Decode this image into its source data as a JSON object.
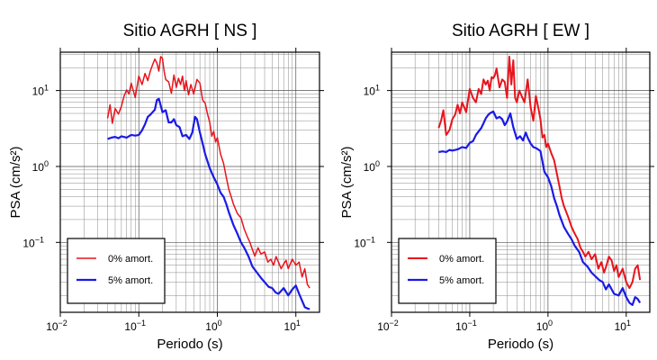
{
  "chart_data": [
    {
      "type": "line",
      "title": "Sitio AGRH [ NS ]",
      "xlabel": "Periodo (s)",
      "ylabel": "PSA (cm/s²)",
      "xscale": "log",
      "yscale": "log",
      "xlim": [
        0.01,
        20
      ],
      "ylim": [
        0.012,
        32
      ],
      "grid": true,
      "legend_position": "lower-left",
      "xticks": [
        {
          "label_base": "10",
          "label_exp": "−2"
        },
        {
          "label_base": "10",
          "label_exp": "−1"
        },
        {
          "label_base": "10",
          "label_exp": "0"
        },
        {
          "label_base": "10",
          "label_exp": "1"
        }
      ],
      "yticks": [
        {
          "label_base": "10",
          "label_exp": "−1"
        },
        {
          "label_base": "10",
          "label_exp": "0"
        },
        {
          "label_base": "10",
          "label_exp": "1"
        }
      ],
      "series": [
        {
          "name": "0% amort.",
          "color": "#e8141c",
          "line_width": 1.5,
          "x": [
            0.04,
            0.043,
            0.046,
            0.05,
            0.055,
            0.06,
            0.065,
            0.07,
            0.075,
            0.08,
            0.09,
            0.1,
            0.11,
            0.12,
            0.13,
            0.14,
            0.15,
            0.16,
            0.17,
            0.18,
            0.19,
            0.2,
            0.21,
            0.22,
            0.24,
            0.26,
            0.28,
            0.3,
            0.32,
            0.34,
            0.36,
            0.38,
            0.4,
            0.43,
            0.46,
            0.5,
            0.55,
            0.6,
            0.65,
            0.7,
            0.75,
            0.8,
            0.85,
            0.9,
            0.95,
            1.0,
            1.1,
            1.2,
            1.3,
            1.4,
            1.5,
            1.6,
            1.8,
            2.0,
            2.2,
            2.4,
            2.6,
            2.8,
            3.0,
            3.3,
            3.6,
            4.0,
            4.4,
            4.8,
            5.2,
            5.6,
            6.0,
            6.5,
            7.0,
            7.5,
            8.0,
            9.0,
            10,
            11,
            12,
            13,
            14,
            15
          ],
          "y": [
            4.3,
            6.5,
            3.7,
            5.8,
            4.9,
            6.2,
            8.5,
            10.2,
            9.0,
            12.5,
            8.1,
            15.5,
            12.0,
            16.8,
            13.5,
            18.0,
            22.0,
            26.0,
            23.0,
            18.0,
            28.0,
            26.5,
            18.0,
            14.0,
            13.0,
            9.2,
            16.0,
            11.0,
            14.5,
            12.0,
            15.5,
            10.0,
            13.5,
            8.8,
            12.0,
            9.0,
            14.0,
            12.5,
            7.5,
            6.8,
            4.9,
            3.8,
            2.5,
            2.9,
            2.1,
            2.4,
            1.45,
            1.1,
            0.72,
            0.5,
            0.4,
            0.32,
            0.24,
            0.21,
            0.15,
            0.12,
            0.1,
            0.08,
            0.066,
            0.085,
            0.07,
            0.075,
            0.055,
            0.06,
            0.05,
            0.065,
            0.055,
            0.045,
            0.052,
            0.058,
            0.045,
            0.06,
            0.05,
            0.055,
            0.035,
            0.045,
            0.028,
            0.025
          ]
        },
        {
          "name": "5% amort.",
          "color": "#1a1ae6",
          "line_width": 2.2,
          "x": [
            0.04,
            0.045,
            0.05,
            0.055,
            0.06,
            0.07,
            0.08,
            0.09,
            0.1,
            0.11,
            0.12,
            0.13,
            0.14,
            0.15,
            0.16,
            0.17,
            0.18,
            0.2,
            0.22,
            0.24,
            0.26,
            0.28,
            0.3,
            0.33,
            0.36,
            0.4,
            0.44,
            0.48,
            0.52,
            0.55,
            0.6,
            0.65,
            0.7,
            0.8,
            0.9,
            1.0,
            1.1,
            1.2,
            1.3,
            1.4,
            1.6,
            1.8,
            2.0,
            2.2,
            2.5,
            2.8,
            3.2,
            3.6,
            4.0,
            4.5,
            5.0,
            5.5,
            6.0,
            7.0,
            8.0,
            9.0,
            10,
            11,
            12,
            13,
            14,
            15
          ],
          "y": [
            2.3,
            2.4,
            2.45,
            2.35,
            2.5,
            2.4,
            2.6,
            2.55,
            2.6,
            3.0,
            3.6,
            4.5,
            4.8,
            5.2,
            5.6,
            7.5,
            7.8,
            5.2,
            5.5,
            3.8,
            3.8,
            4.2,
            3.5,
            3.3,
            2.5,
            2.6,
            2.3,
            2.8,
            4.5,
            4.2,
            2.8,
            2.0,
            1.45,
            0.95,
            0.72,
            0.58,
            0.45,
            0.4,
            0.32,
            0.25,
            0.17,
            0.13,
            0.1,
            0.085,
            0.065,
            0.048,
            0.04,
            0.034,
            0.03,
            0.026,
            0.025,
            0.022,
            0.021,
            0.025,
            0.02,
            0.024,
            0.027,
            0.021,
            0.017,
            0.014,
            0.0135,
            0.0132
          ]
        }
      ]
    },
    {
      "type": "line",
      "title": "Sitio AGRH [ EW ]",
      "xlabel": "Periodo (s)",
      "ylabel": "PSA (cm/s²)",
      "xscale": "log",
      "yscale": "log",
      "xlim": [
        0.01,
        20
      ],
      "ylim": [
        0.012,
        32
      ],
      "grid": true,
      "legend_position": "lower-left",
      "xticks": [
        {
          "label_base": "10",
          "label_exp": "−2"
        },
        {
          "label_base": "10",
          "label_exp": "−1"
        },
        {
          "label_base": "10",
          "label_exp": "0"
        },
        {
          "label_base": "10",
          "label_exp": "1"
        }
      ],
      "yticks": [
        {
          "label_base": "10",
          "label_exp": "−1"
        },
        {
          "label_base": "10",
          "label_exp": "0"
        },
        {
          "label_base": "10",
          "label_exp": "1"
        }
      ],
      "series": [
        {
          "name": "0% amort.",
          "color": "#e8141c",
          "line_width": 2.0,
          "x": [
            0.04,
            0.043,
            0.046,
            0.05,
            0.055,
            0.06,
            0.065,
            0.07,
            0.075,
            0.08,
            0.09,
            0.1,
            0.11,
            0.12,
            0.13,
            0.14,
            0.15,
            0.16,
            0.17,
            0.18,
            0.19,
            0.2,
            0.21,
            0.22,
            0.24,
            0.26,
            0.28,
            0.3,
            0.32,
            0.34,
            0.36,
            0.38,
            0.4,
            0.43,
            0.46,
            0.5,
            0.55,
            0.6,
            0.65,
            0.7,
            0.75,
            0.8,
            0.85,
            0.9,
            0.95,
            1.0,
            1.1,
            1.2,
            1.3,
            1.4,
            1.5,
            1.6,
            1.8,
            2.0,
            2.2,
            2.4,
            2.6,
            2.8,
            3.0,
            3.3,
            3.6,
            4.0,
            4.4,
            4.8,
            5.2,
            5.6,
            6.0,
            6.5,
            7.0,
            7.5,
            8.0,
            9.0,
            10,
            11,
            12,
            13,
            14,
            15
          ],
          "y": [
            3.2,
            4.0,
            5.5,
            2.6,
            3.0,
            4.2,
            4.8,
            6.5,
            5.0,
            7.0,
            5.2,
            10.5,
            8.0,
            7.0,
            10.5,
            9.0,
            14.0,
            12.0,
            13.5,
            10.0,
            15.0,
            14.5,
            16.0,
            19.5,
            11.0,
            14.0,
            13.0,
            8.0,
            28.0,
            12.0,
            25.0,
            8.0,
            7.0,
            10.0,
            8.5,
            7.0,
            14.0,
            6.0,
            4.0,
            8.5,
            6.0,
            4.2,
            2.4,
            2.6,
            1.8,
            2.0,
            1.5,
            1.2,
            0.8,
            0.55,
            0.38,
            0.3,
            0.22,
            0.16,
            0.13,
            0.11,
            0.085,
            0.075,
            0.065,
            0.075,
            0.06,
            0.07,
            0.045,
            0.055,
            0.04,
            0.05,
            0.065,
            0.058,
            0.042,
            0.05,
            0.035,
            0.045,
            0.03,
            0.025,
            0.03,
            0.045,
            0.05,
            0.032
          ]
        },
        {
          "name": "5% amort.",
          "color": "#1a1ae6",
          "line_width": 2.2,
          "x": [
            0.04,
            0.045,
            0.05,
            0.055,
            0.06,
            0.07,
            0.08,
            0.09,
            0.1,
            0.11,
            0.12,
            0.13,
            0.14,
            0.15,
            0.16,
            0.17,
            0.18,
            0.2,
            0.22,
            0.24,
            0.26,
            0.28,
            0.3,
            0.33,
            0.36,
            0.4,
            0.44,
            0.48,
            0.52,
            0.55,
            0.6,
            0.65,
            0.7,
            0.8,
            0.9,
            1.0,
            1.1,
            1.2,
            1.3,
            1.4,
            1.6,
            1.8,
            2.0,
            2.2,
            2.5,
            2.8,
            3.2,
            3.6,
            4.0,
            4.5,
            5.0,
            5.5,
            6.0,
            7.0,
            8.0,
            9.0,
            10,
            11,
            12,
            13,
            14,
            15
          ],
          "y": [
            1.55,
            1.58,
            1.55,
            1.65,
            1.62,
            1.68,
            1.8,
            1.75,
            2.05,
            2.15,
            2.6,
            2.9,
            3.2,
            3.7,
            4.3,
            4.7,
            5.0,
            5.3,
            4.3,
            4.5,
            4.2,
            3.5,
            3.9,
            5.0,
            3.3,
            2.3,
            2.5,
            2.2,
            2.8,
            2.4,
            2.0,
            1.8,
            1.75,
            1.6,
            0.85,
            0.72,
            0.55,
            0.38,
            0.3,
            0.23,
            0.16,
            0.13,
            0.11,
            0.09,
            0.075,
            0.055,
            0.048,
            0.04,
            0.036,
            0.032,
            0.03,
            0.024,
            0.028,
            0.021,
            0.02,
            0.025,
            0.019,
            0.016,
            0.015,
            0.019,
            0.018,
            0.016
          ]
        }
      ]
    }
  ]
}
